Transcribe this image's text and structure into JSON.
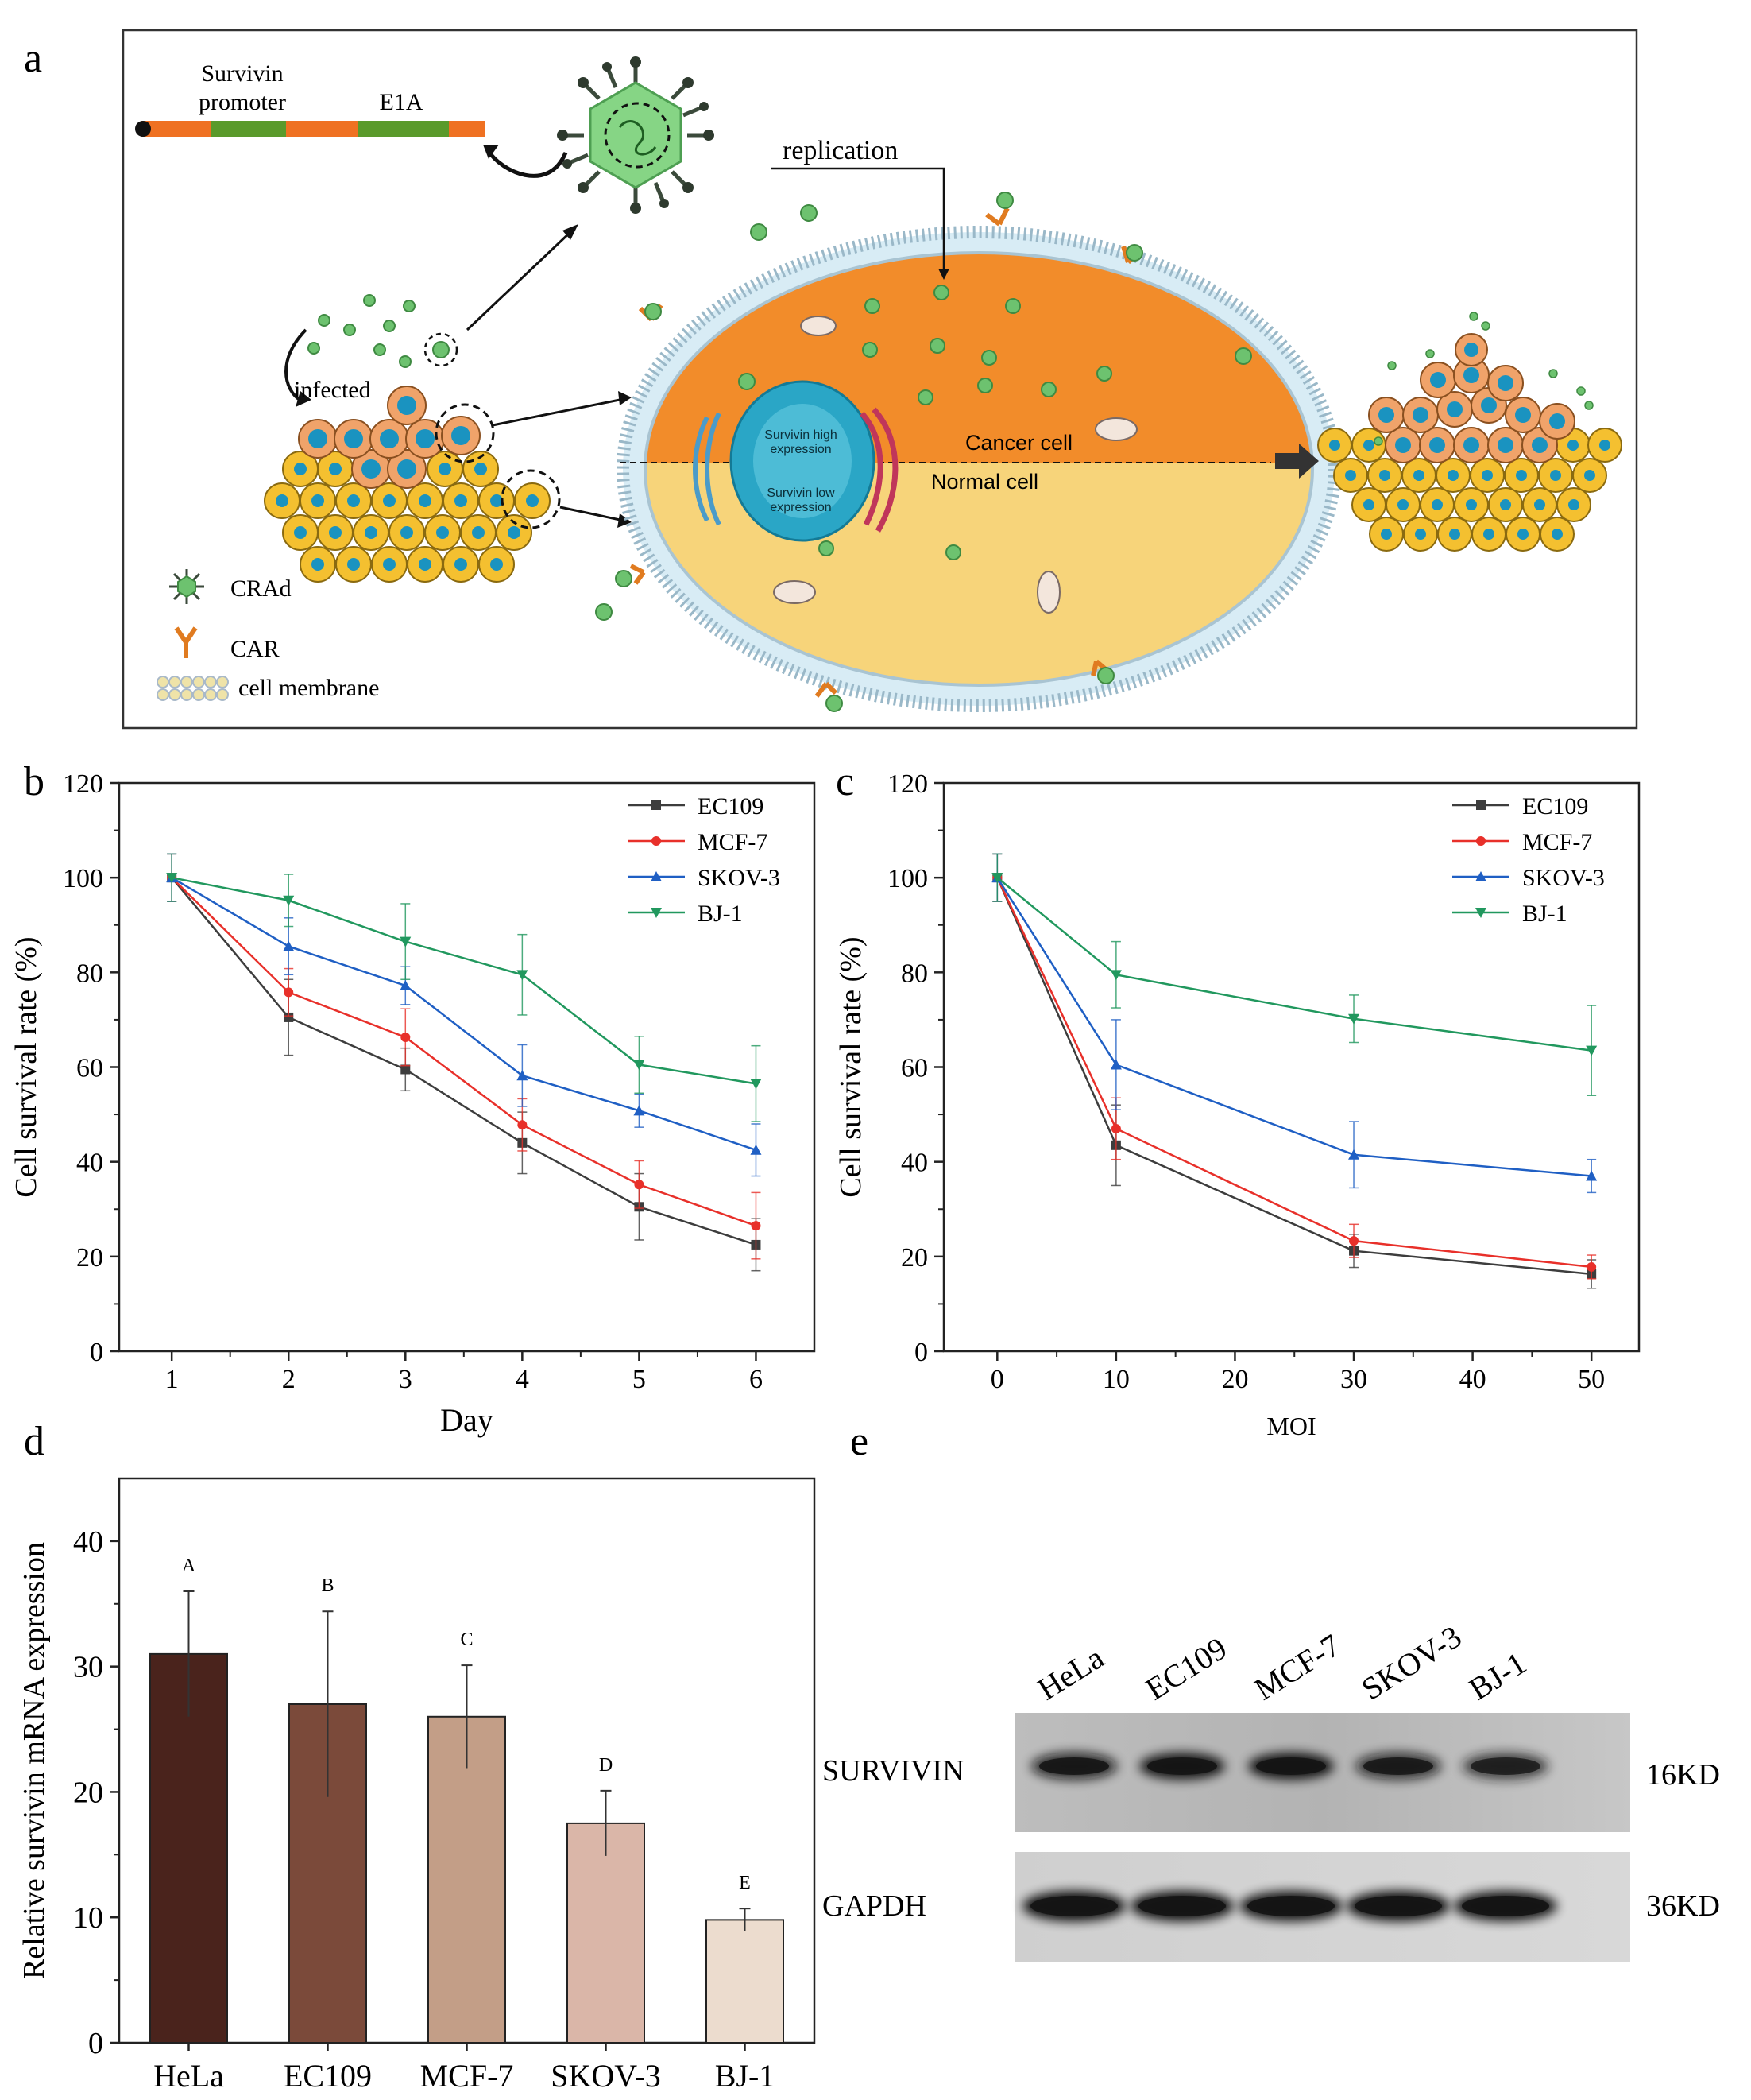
{
  "panels": {
    "a": "a",
    "b": "b",
    "c": "c",
    "d": "d",
    "e": "e"
  },
  "schematic": {
    "promoter_label_1": "Survivin",
    "promoter_label_2": "promoter",
    "e1a_label": "E1A",
    "replication": "replication",
    "infected": "infected",
    "cancer_cell": "Cancer cell",
    "normal_cell": "Normal cell",
    "survivin_high_1": "Survivin high",
    "survivin_high_2": "expression",
    "survivin_low_1": "Survivin low",
    "survivin_low_2": "expression",
    "legend_crad": "CRAd",
    "legend_car": "CAR",
    "legend_membrane": "cell membrane"
  },
  "chart_data": [
    {
      "id": "b",
      "type": "line",
      "xlabel": "Day",
      "ylabel": "Cell survival rate (%)",
      "x": [
        1,
        2,
        3,
        4,
        5,
        6
      ],
      "xticks": [
        "1",
        "2",
        "3",
        "4",
        "5",
        "6"
      ],
      "xlim": [
        0.55,
        6.5
      ],
      "ylim": [
        0,
        120
      ],
      "yticks": [
        "0",
        "20",
        "40",
        "60",
        "80",
        "100",
        "120"
      ],
      "legend_position": "top-right",
      "series": [
        {
          "name": "EC109",
          "color": "#3d3d3d",
          "marker": "square",
          "values": [
            100,
            70.5,
            59.5,
            44,
            30.5,
            22.5
          ],
          "err": [
            5,
            8,
            4.5,
            6.5,
            7,
            5.5
          ]
        },
        {
          "name": "MCF-7",
          "color": "#e8302a",
          "marker": "circle",
          "values": [
            100,
            75.8,
            66.3,
            47.8,
            35.2,
            26.5
          ],
          "err": [
            5,
            5,
            6,
            5.5,
            5,
            7
          ]
        },
        {
          "name": "SKOV-3",
          "color": "#1f5fc4",
          "marker": "triangle",
          "values": [
            100,
            85.5,
            77.2,
            58.2,
            50.8,
            42.5
          ],
          "err": [
            5,
            6,
            4,
            6.5,
            3.5,
            5.5
          ]
        },
        {
          "name": "BJ-1",
          "color": "#21985e",
          "marker": "tri-down",
          "values": [
            100,
            95.2,
            86.5,
            79.5,
            60.5,
            56.5
          ],
          "err": [
            5,
            5.5,
            8,
            8.5,
            6,
            8
          ]
        }
      ]
    },
    {
      "id": "c",
      "type": "line",
      "xlabel": "MOI",
      "ylabel": "Cell survival rate (%)",
      "x": [
        0,
        10,
        30,
        50
      ],
      "xticks": [
        "0",
        "10",
        "20",
        "30",
        "40",
        "50"
      ],
      "xtick_values": [
        0,
        10,
        20,
        30,
        40,
        50
      ],
      "xlim": [
        -4.5,
        54
      ],
      "ylim": [
        0,
        120
      ],
      "yticks": [
        "0",
        "20",
        "40",
        "60",
        "80",
        "100",
        "120"
      ],
      "legend_position": "top-right",
      "series": [
        {
          "name": "EC109",
          "color": "#3d3d3d",
          "marker": "square",
          "values": [
            100,
            43.5,
            21.2,
            16.3
          ],
          "err": [
            5,
            8.5,
            3.5,
            3
          ]
        },
        {
          "name": "MCF-7",
          "color": "#e8302a",
          "marker": "circle",
          "values": [
            100,
            47,
            23.3,
            17.8
          ],
          "err": [
            5,
            6.5,
            3.5,
            2.5
          ]
        },
        {
          "name": "SKOV-3",
          "color": "#1f5fc4",
          "marker": "triangle",
          "values": [
            100,
            60.5,
            41.5,
            37
          ],
          "err": [
            5,
            9.5,
            7,
            3.5
          ]
        },
        {
          "name": "BJ-1",
          "color": "#21985e",
          "marker": "tri-down",
          "values": [
            100,
            79.5,
            70.2,
            63.5
          ],
          "err": [
            5,
            7,
            5,
            9.5
          ]
        }
      ]
    },
    {
      "id": "d",
      "type": "bar",
      "xlabel": "",
      "ylabel": "Relative survivin  mRNA expression",
      "categories": [
        "HeLa",
        "EC109",
        "MCF-7",
        "SKOV-3",
        "BJ-1"
      ],
      "values": [
        31,
        27,
        26,
        17.5,
        9.8
      ],
      "err": [
        5,
        7.4,
        4.1,
        2.6,
        0.9
      ],
      "letters": [
        "A",
        "B",
        "C",
        "D",
        "E"
      ],
      "colors": [
        "#4a231c",
        "#7b4a3a",
        "#c39e87",
        "#dab6a8",
        "#ecdcce"
      ],
      "ylim": [
        0,
        45
      ],
      "yticks": [
        "0",
        "10",
        "20",
        "30",
        "40"
      ]
    }
  ],
  "blot": {
    "lanes": [
      "HeLa",
      "EC109",
      "MCF-7",
      "SKOV-3",
      "BJ-1"
    ],
    "rows": [
      {
        "label": "SURVIVIN",
        "size": "16KD",
        "intensity": [
          0.85,
          0.92,
          0.95,
          0.75,
          0.65
        ]
      },
      {
        "label": "GAPDH",
        "size": "36KD",
        "intensity": [
          1,
          1,
          0.95,
          1,
          0.95
        ]
      }
    ]
  }
}
